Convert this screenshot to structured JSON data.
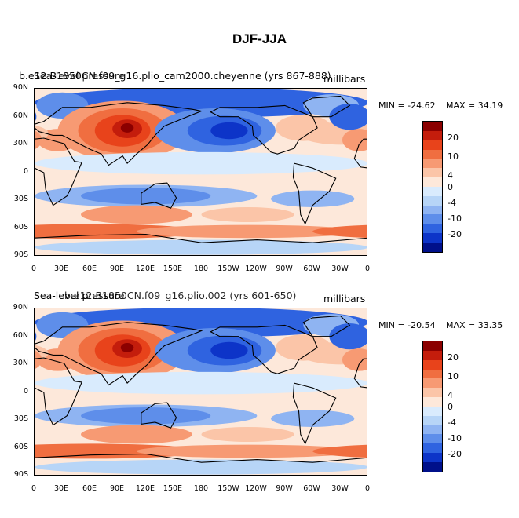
{
  "figure": {
    "title": "DJF-JJA"
  },
  "panels": [
    {
      "case_name": "b.e12.B1850CN.f09_g16.plio_cam2000.cheyenne (yrs 867-888)",
      "variable": "Sea-level pressure",
      "units": "millibars",
      "min_label": "MIN = -24.62",
      "max_label": "MAX =  34.19"
    },
    {
      "case_name": "b.e12.B1850CN.f09_g16.plio.002 (yrs 601-650)",
      "variable": "Sea-level pressure",
      "units": "millibars",
      "min_label": "MIN = -20.54",
      "max_label": "MAX =  33.35"
    }
  ],
  "axes": {
    "lat_labels": [
      "90N",
      "60N",
      "30N",
      "0",
      "30S",
      "60S",
      "90S"
    ],
    "lon_labels": [
      "0",
      "30E",
      "60E",
      "90E",
      "120E",
      "150E",
      "180",
      "150W",
      "120W",
      "90W",
      "60W",
      "30W",
      "0"
    ]
  },
  "colorbar": {
    "labels": [
      "20",
      "10",
      "4",
      "0",
      "-4",
      "-10",
      "-20"
    ],
    "colors": [
      "#8b0000",
      "#c41d0c",
      "#e8431b",
      "#f06e40",
      "#f79a73",
      "#fbc5a8",
      "#fde8da",
      "#d9ebfd",
      "#b7d5f7",
      "#8fb4f2",
      "#5e8eea",
      "#2f63e0",
      "#0d34c8",
      "#00108a"
    ]
  },
  "chart_data": [
    {
      "type": "heatmap",
      "title": "b.e12.B1850CN.f09_g16.plio_cam2000.cheyenne (yrs 867-888)",
      "variable": "Sea-level pressure (DJF-JJA)",
      "units": "millibars",
      "min": -24.62,
      "max": 34.19,
      "x_range": [
        0,
        360
      ],
      "y_range": [
        -90,
        90
      ],
      "contour_levels": [
        -20,
        -15,
        -10,
        -7,
        -4,
        -2,
        0,
        2,
        4,
        7,
        10,
        15,
        20
      ]
    },
    {
      "type": "heatmap",
      "title": "b.e12.B1850CN.f09_g16.plio.002 (yrs 601-650)",
      "variable": "Sea-level pressure (DJF-JJA)",
      "units": "millibars",
      "min": -20.54,
      "max": 33.35,
      "x_range": [
        0,
        360
      ],
      "y_range": [
        -90,
        90
      ],
      "contour_levels": [
        -20,
        -15,
        -10,
        -7,
        -4,
        -2,
        0,
        2,
        4,
        7,
        10,
        15,
        20
      ]
    }
  ]
}
